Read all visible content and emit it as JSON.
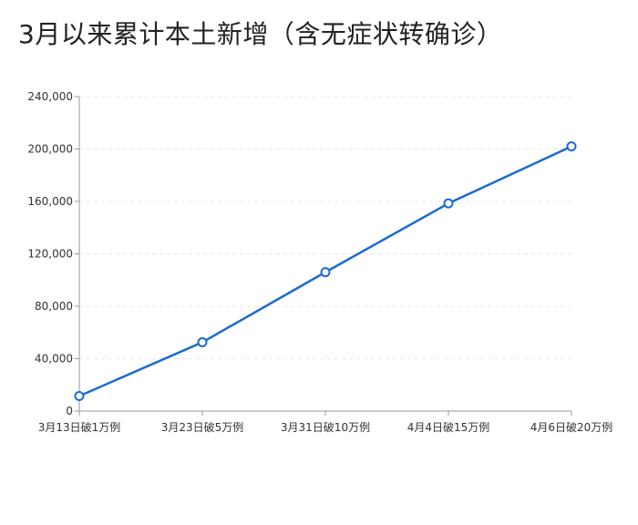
{
  "chart_data": {
    "type": "line",
    "title": "3月以来累计本土新增（含无症状转确诊）",
    "xlabel": "",
    "ylabel": "",
    "categories": [
      "3月13日破1万例",
      "3月23日破5万例",
      "3月31日破10万例",
      "4月4日破15万例",
      "4月6日破20万例"
    ],
    "y_tick_labels": [
      "0",
      "40,000",
      "80,000",
      "120,000",
      "160,000",
      "200,000",
      "240,000"
    ],
    "series": [
      {
        "values": [
          11500,
          52500,
          106000,
          158500,
          202000
        ]
      }
    ],
    "ylim": [
      0,
      240000
    ],
    "y_tick_step": 40000,
    "grid": true,
    "legend": "none",
    "colors": {
      "line": "#1a6bd1",
      "marker_fill": "#ffffff",
      "axis": "#999999",
      "grid": "#e8e8e8"
    }
  }
}
